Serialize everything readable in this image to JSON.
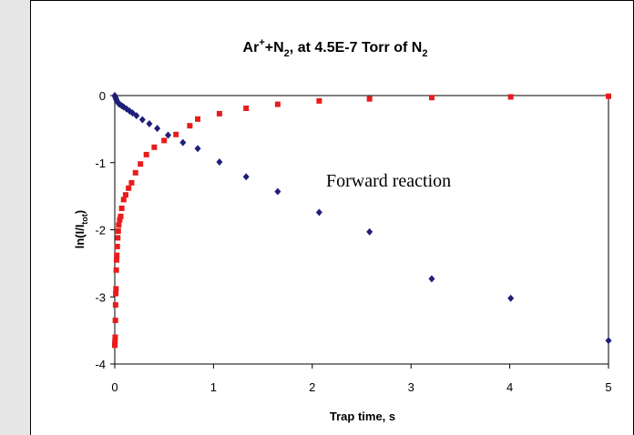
{
  "chart_data": {
    "type": "scatter",
    "title": {
      "parts": [
        {
          "text": "Ar",
          "style": "normal"
        },
        {
          "text": "+",
          "style": "sup"
        },
        {
          "text": "+N",
          "style": "normal"
        },
        {
          "text": "2",
          "style": "sub"
        },
        {
          "text": ", at 4.5E-7 Torr of N",
          "style": "normal"
        },
        {
          "text": "2",
          "style": "sub"
        }
      ]
    },
    "xlabel": "Trap time, s",
    "ylabel": "ln(I/I",
    "ylabel_sub": "tot",
    "ylabel_close": ")",
    "xlim": [
      0,
      5
    ],
    "ylim": [
      -4,
      0
    ],
    "x_ticks": [
      "0",
      "1",
      "2",
      "3",
      "4",
      "5"
    ],
    "y_ticks": [
      "0",
      "-1",
      "-2",
      "-3",
      "-4"
    ],
    "grid": false,
    "legend": "none",
    "annotation": "Forward reaction",
    "series": [
      {
        "color": "#1f1f7a",
        "marker": "diamond",
        "x": [
          0,
          0.005,
          0.01,
          0.015,
          0.02,
          0.03,
          0.04,
          0.05,
          0.07,
          0.09,
          0.12,
          0.15,
          0.18,
          0.22,
          0.28,
          0.35,
          0.43,
          0.54,
          0.69,
          0.84,
          1.06,
          1.33,
          1.65,
          2.07,
          2.58,
          3.21,
          4.01,
          5.0
        ],
        "y": [
          0,
          -0.02,
          -0.04,
          -0.06,
          -0.08,
          -0.1,
          -0.12,
          -0.13,
          -0.15,
          -0.17,
          -0.2,
          -0.23,
          -0.26,
          -0.3,
          -0.36,
          -0.42,
          -0.49,
          -0.59,
          -0.7,
          -0.79,
          -0.99,
          -1.21,
          -1.43,
          -1.74,
          -2.03,
          -2.73,
          -3.02,
          -3.65
        ]
      },
      {
        "color": "#e81c1c",
        "marker": "square",
        "x": [
          0,
          0.002,
          0.004,
          0.006,
          0.008,
          0.01,
          0.012,
          0.015,
          0.018,
          0.02,
          0.025,
          0.03,
          0.035,
          0.04,
          0.05,
          0.06,
          0.07,
          0.09,
          0.11,
          0.14,
          0.17,
          0.21,
          0.26,
          0.32,
          0.4,
          0.5,
          0.62,
          0.76,
          0.84,
          1.06,
          1.33,
          1.65,
          2.07,
          2.58,
          3.21,
          4.01,
          5.0
        ],
        "y": [
          -3.72,
          -3.67,
          -3.6,
          -3.35,
          -3.12,
          -2.95,
          -2.88,
          -2.6,
          -2.45,
          -2.38,
          -2.25,
          -2.12,
          -2.02,
          -1.93,
          -1.85,
          -1.8,
          -1.68,
          -1.55,
          -1.48,
          -1.38,
          -1.3,
          -1.15,
          -1.02,
          -0.88,
          -0.77,
          -0.67,
          -0.58,
          -0.45,
          -0.35,
          -0.27,
          -0.19,
          -0.13,
          -0.08,
          -0.05,
          -0.03,
          -0.02,
          -0.01
        ]
      }
    ]
  }
}
